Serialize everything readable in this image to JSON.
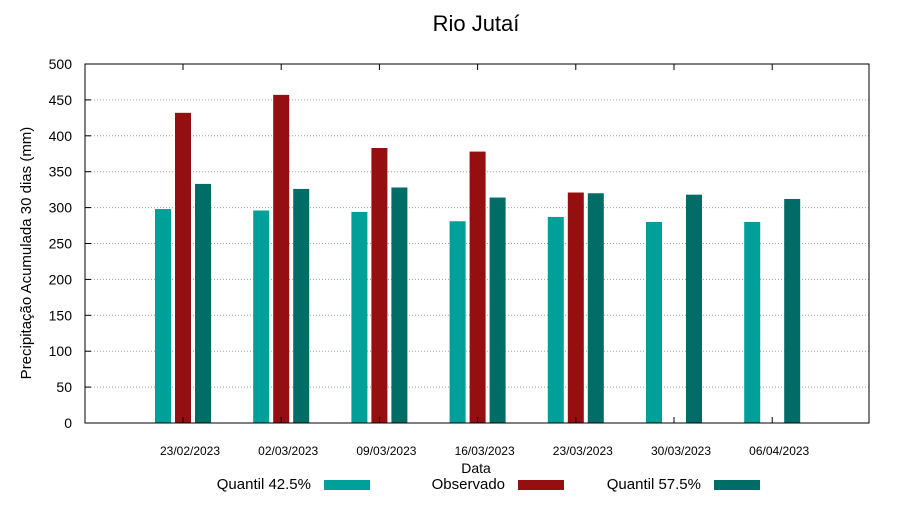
{
  "chart_data": {
    "type": "bar",
    "title": "Rio Jutaí",
    "xlabel": "Data",
    "ylabel": "Precipitação Acumulada 30 dias (mm)",
    "ylim": [
      0,
      500
    ],
    "yticks": [
      "0",
      "50",
      "100",
      "150",
      "200",
      "250",
      "300",
      "350",
      "400",
      "450",
      "500"
    ],
    "grid": true,
    "legend_position": "bottom",
    "categories": [
      "23/02/2023",
      "02/03/2023",
      "09/03/2023",
      "16/03/2023",
      "23/03/2023",
      "30/03/2023",
      "06/04/2023"
    ],
    "series": [
      {
        "name": "Quantil 42.5%",
        "color": "#00a09a",
        "values": [
          298,
          296,
          294,
          281,
          287,
          280,
          280
        ]
      },
      {
        "name": "Observado",
        "color": "#950f10",
        "values": [
          432,
          457,
          383,
          378,
          321,
          null,
          null
        ]
      },
      {
        "name": "Quantil 57.5%",
        "color": "#006c66",
        "values": [
          333,
          326,
          328,
          314,
          320,
          318,
          312
        ]
      }
    ]
  }
}
